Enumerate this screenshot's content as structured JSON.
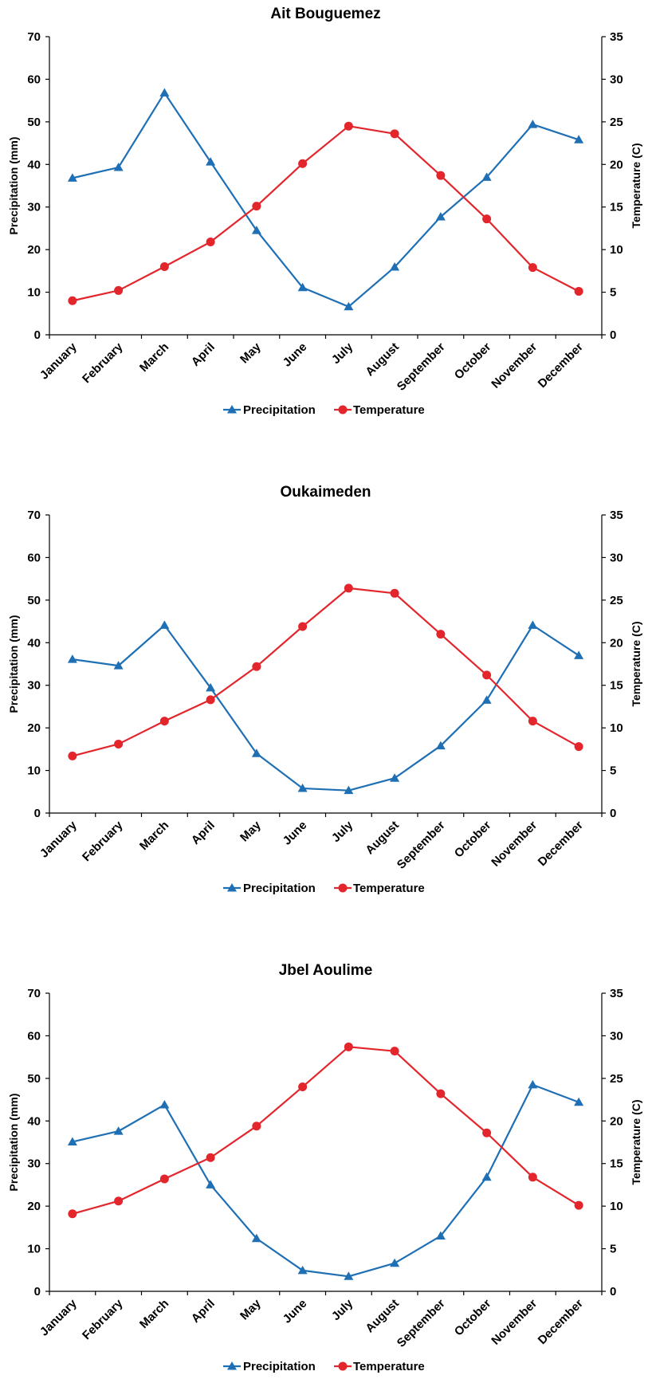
{
  "chart_data": [
    {
      "type": "line",
      "title": "Ait Bouguemez",
      "categories": [
        "January",
        "February",
        "March",
        "April",
        "May",
        "June",
        "July",
        "August",
        "September",
        "October",
        "November",
        "December"
      ],
      "y_left": {
        "label": "Precipitation (mm)",
        "range": [
          0,
          70
        ],
        "ticks": [
          0,
          10,
          20,
          30,
          40,
          50,
          60,
          70
        ]
      },
      "y_right": {
        "label": "Temperature (C)",
        "range": [
          0,
          35
        ],
        "ticks": [
          0,
          5,
          10,
          15,
          20,
          25,
          30,
          35
        ]
      },
      "series": [
        {
          "name": "Precipitation",
          "axis": "left",
          "color": "#1f6fb4",
          "marker": "triangle",
          "values": [
            36.8,
            39.3,
            56.8,
            40.6,
            24.5,
            11.1,
            6.6,
            15.9,
            27.7,
            37.0,
            49.4,
            45.8
          ]
        },
        {
          "name": "Temperature",
          "axis": "right",
          "color": "#e3252c",
          "marker": "circle",
          "values": [
            4.0,
            5.2,
            8.0,
            10.9,
            15.1,
            20.1,
            24.5,
            23.6,
            18.7,
            13.6,
            7.9,
            5.1
          ]
        }
      ],
      "legend": "bottom",
      "grid": false
    },
    {
      "type": "line",
      "title": "Oukaimeden",
      "categories": [
        "January",
        "February",
        "March",
        "April",
        "May",
        "June",
        "July",
        "August",
        "September",
        "October",
        "November",
        "December"
      ],
      "y_left": {
        "label": "Precipitation (mm)",
        "range": [
          0,
          70
        ],
        "ticks": [
          0,
          10,
          20,
          30,
          40,
          50,
          60,
          70
        ]
      },
      "y_right": {
        "label": "Temperature (C)",
        "range": [
          0,
          35
        ],
        "ticks": [
          0,
          5,
          10,
          15,
          20,
          25,
          30,
          35
        ]
      },
      "series": [
        {
          "name": "Precipitation",
          "axis": "left",
          "color": "#1f6fb4",
          "marker": "triangle",
          "values": [
            36.1,
            34.6,
            44.1,
            29.4,
            14.0,
            5.8,
            5.3,
            8.2,
            15.8,
            26.5,
            44.1,
            37.0
          ]
        },
        {
          "name": "Temperature",
          "axis": "right",
          "color": "#e3252c",
          "marker": "circle",
          "values": [
            6.7,
            8.1,
            10.8,
            13.3,
            17.2,
            21.9,
            26.4,
            25.8,
            21.0,
            16.2,
            10.8,
            7.8
          ]
        }
      ],
      "legend": "bottom",
      "grid": false
    },
    {
      "type": "line",
      "title": "Jbel Aoulime",
      "categories": [
        "January",
        "February",
        "March",
        "April",
        "May",
        "June",
        "July",
        "August",
        "September",
        "October",
        "November",
        "December"
      ],
      "y_left": {
        "label": "Precipitation (mm)",
        "range": [
          0,
          70
        ],
        "ticks": [
          0,
          10,
          20,
          30,
          40,
          50,
          60,
          70
        ]
      },
      "y_right": {
        "label": "Temperature (C)",
        "range": [
          0,
          35
        ],
        "ticks": [
          0,
          5,
          10,
          15,
          20,
          25,
          30,
          35
        ]
      },
      "series": [
        {
          "name": "Precipitation",
          "axis": "left",
          "color": "#1f6fb4",
          "marker": "triangle",
          "values": [
            35.1,
            37.6,
            43.8,
            25.0,
            12.4,
            4.9,
            3.5,
            6.6,
            13.0,
            26.8,
            48.5,
            44.4
          ]
        },
        {
          "name": "Temperature",
          "axis": "right",
          "color": "#e3252c",
          "marker": "circle",
          "values": [
            9.1,
            10.6,
            13.2,
            15.7,
            19.4,
            24.0,
            28.7,
            28.2,
            23.2,
            18.6,
            13.4,
            10.1
          ]
        }
      ],
      "legend": "bottom",
      "grid": false
    }
  ]
}
